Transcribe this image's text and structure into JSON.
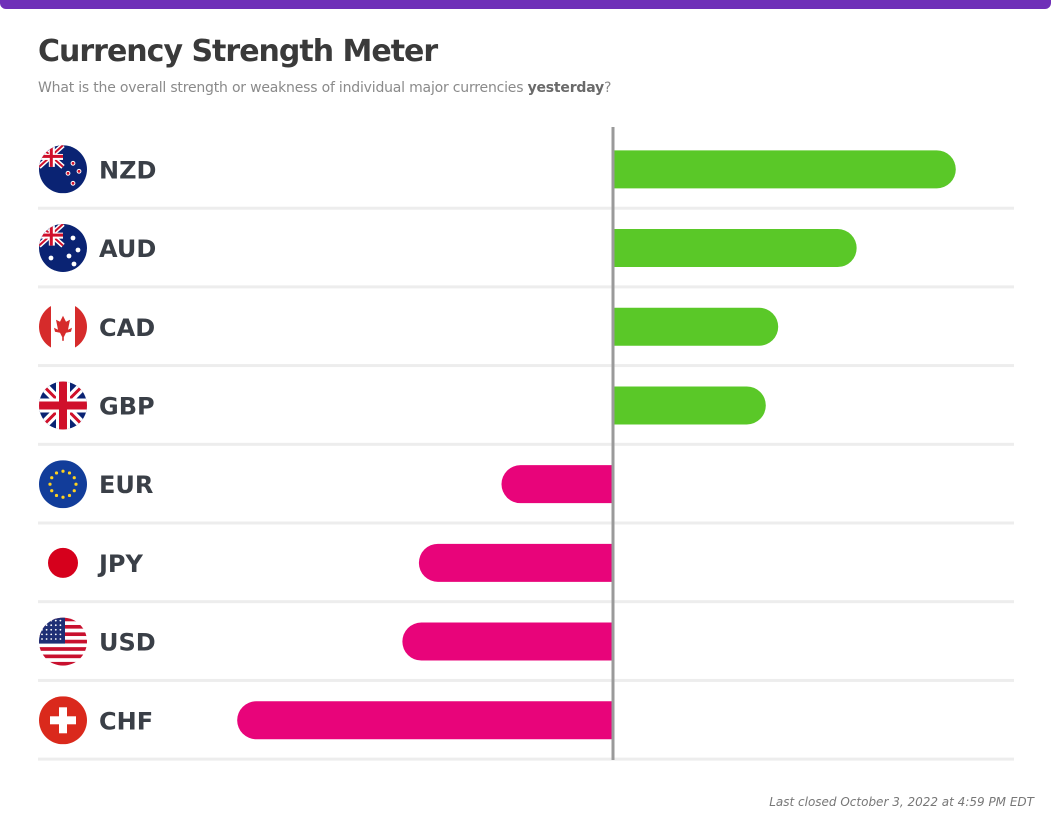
{
  "header": {
    "title": "Currency Strength Meter",
    "subtitle_prefix": "What is the overall strength or weakness of individual major currencies ",
    "subtitle_emphasis": "yesterday",
    "subtitle_suffix": "?"
  },
  "footer": {
    "last_closed": "Last closed October 3, 2022 at 4:59 PM EDT"
  },
  "colors": {
    "accent_bar": "#6f2fb8",
    "positive": "#5ac828",
    "negative": "#e8047a",
    "axis": "#9a9a9a",
    "separator": "#ededed"
  },
  "chart_data": {
    "type": "bar",
    "orientation": "horizontal",
    "title": "Currency Strength Meter",
    "xlim": [
      -1,
      1
    ],
    "categories": [
      "NZD",
      "AUD",
      "CAD",
      "GBP",
      "EUR",
      "JPY",
      "USD",
      "CHF"
    ],
    "flags": [
      "nz-flag-icon",
      "au-flag-icon",
      "ca-flag-icon",
      "gb-flag-icon",
      "eu-flag-icon",
      "jp-flag-icon",
      "us-flag-icon",
      "ch-flag-icon"
    ],
    "values": [
      0.83,
      0.59,
      0.4,
      0.37,
      -0.27,
      -0.47,
      -0.51,
      -0.91
    ]
  }
}
